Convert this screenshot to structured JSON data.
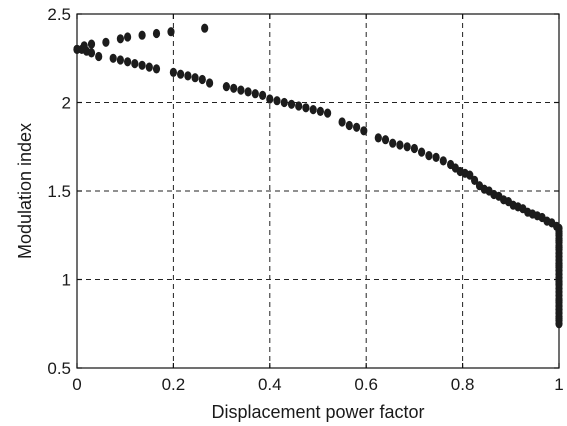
{
  "chart_data": {
    "type": "scatter",
    "title": "",
    "xlabel": "Displacement power factor",
    "ylabel": "Modulation index",
    "xlim": [
      0,
      1
    ],
    "ylim": [
      0.5,
      2.5
    ],
    "x_ticks": [
      0,
      0.2,
      0.4,
      0.6,
      0.8,
      1
    ],
    "x_tick_labels": [
      "0",
      "0.2",
      "0.4",
      "0.6",
      "0.8",
      "1"
    ],
    "y_ticks": [
      0.5,
      1,
      1.5,
      2,
      2.5
    ],
    "y_tick_labels": [
      "0.5",
      "1",
      "1.5",
      "2",
      "2.5"
    ],
    "grid": true,
    "legend": "none",
    "marker_color": "#1c1c1c",
    "series": [
      {
        "x": [
          0.0,
          0.01,
          0.02,
          0.03,
          0.045,
          0.075,
          0.09,
          0.105,
          0.12,
          0.135,
          0.15,
          0.165,
          0.2,
          0.215,
          0.23,
          0.245,
          0.26,
          0.275,
          0.31,
          0.325,
          0.34,
          0.355,
          0.37,
          0.385,
          0.4,
          0.415,
          0.43,
          0.445,
          0.46,
          0.475,
          0.49,
          0.505,
          0.52,
          0.55,
          0.565,
          0.58,
          0.595,
          0.625,
          0.64,
          0.655,
          0.67,
          0.685,
          0.7,
          0.715,
          0.73,
          0.745,
          0.76,
          0.775,
          0.785,
          0.795,
          0.805,
          0.815,
          0.825,
          0.835,
          0.845,
          0.855,
          0.865,
          0.875,
          0.885,
          0.895,
          0.905,
          0.915,
          0.925,
          0.935,
          0.945,
          0.955,
          0.965,
          0.975,
          0.985,
          0.995,
          1.0,
          1.0,
          1.0,
          1.0,
          1.0,
          1.0,
          1.0,
          1.0,
          1.0,
          1.0,
          1.0,
          1.0,
          1.0,
          1.0,
          1.0,
          1.0,
          1.0,
          1.0,
          1.0,
          1.0,
          1.0,
          1.0,
          1.0,
          1.0,
          1.0,
          1.0,
          1.0,
          1.0,
          1.0,
          1.0,
          1.0,
          1.0,
          1.0,
          1.0,
          1.0
        ],
        "y": [
          2.3,
          2.3,
          2.29,
          2.28,
          2.26,
          2.25,
          2.24,
          2.23,
          2.22,
          2.21,
          2.2,
          2.19,
          2.17,
          2.16,
          2.15,
          2.14,
          2.13,
          2.11,
          2.09,
          2.08,
          2.07,
          2.06,
          2.05,
          2.04,
          2.02,
          2.01,
          2.0,
          1.99,
          1.98,
          1.97,
          1.96,
          1.95,
          1.94,
          1.89,
          1.87,
          1.86,
          1.84,
          1.8,
          1.79,
          1.77,
          1.76,
          1.75,
          1.74,
          1.72,
          1.7,
          1.69,
          1.67,
          1.65,
          1.63,
          1.61,
          1.6,
          1.59,
          1.56,
          1.53,
          1.51,
          1.5,
          1.48,
          1.47,
          1.45,
          1.44,
          1.42,
          1.41,
          1.4,
          1.38,
          1.37,
          1.36,
          1.35,
          1.33,
          1.32,
          1.3,
          1.29,
          1.27,
          1.25,
          1.23,
          1.21,
          1.19,
          1.17,
          1.15,
          1.13,
          1.11,
          1.09,
          1.07,
          1.05,
          1.03,
          1.01,
          0.99,
          0.97,
          0.95,
          0.93,
          0.91,
          0.89,
          0.87,
          0.85,
          0.83,
          0.81,
          0.79,
          0.77,
          0.75,
          1.26,
          1.22,
          1.18,
          1.08,
          0.98,
          0.88,
          0.78
        ]
      },
      {
        "x": [
          0.0,
          0.015,
          0.03,
          0.06,
          0.09,
          0.105,
          0.135,
          0.165,
          0.195,
          0.265
        ],
        "y": [
          2.3,
          2.32,
          2.33,
          2.34,
          2.36,
          2.37,
          2.38,
          2.39,
          2.4,
          2.42
        ]
      }
    ]
  }
}
